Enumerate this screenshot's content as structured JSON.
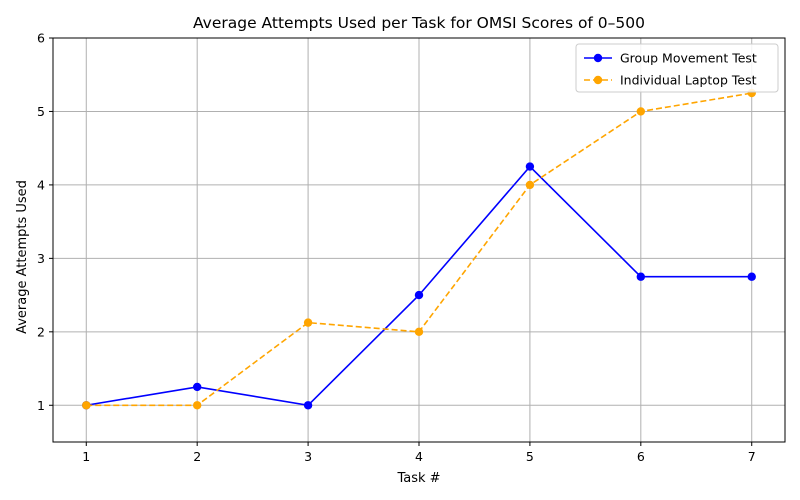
{
  "chart_data": {
    "type": "line",
    "title": "Average Attempts Used per Task for OMSI Scores of 0–500",
    "xlabel": "Task #",
    "ylabel": "Average Attempts Used",
    "x": [
      1,
      2,
      3,
      4,
      5,
      6,
      7
    ],
    "xticks": [
      "1",
      "2",
      "3",
      "4",
      "5",
      "6",
      "7"
    ],
    "yticks": [
      "1",
      "2",
      "3",
      "4",
      "5",
      "6"
    ],
    "xlim": [
      0.7,
      7.3
    ],
    "ylim": [
      0.5,
      6
    ],
    "grid": true,
    "legend_position": "top-right",
    "series": [
      {
        "name": "Group Movement Test",
        "values": [
          1,
          1.25,
          1,
          2.5,
          4.25,
          2.75,
          2.75
        ],
        "color": "#0000ff",
        "line_style": "solid",
        "marker": "circle"
      },
      {
        "name": "Individual Laptop Test",
        "values": [
          1,
          1,
          2.125,
          2,
          4,
          5,
          5.25
        ],
        "color": "#ffa500",
        "line_style": "dashed",
        "marker": "circle"
      }
    ]
  }
}
